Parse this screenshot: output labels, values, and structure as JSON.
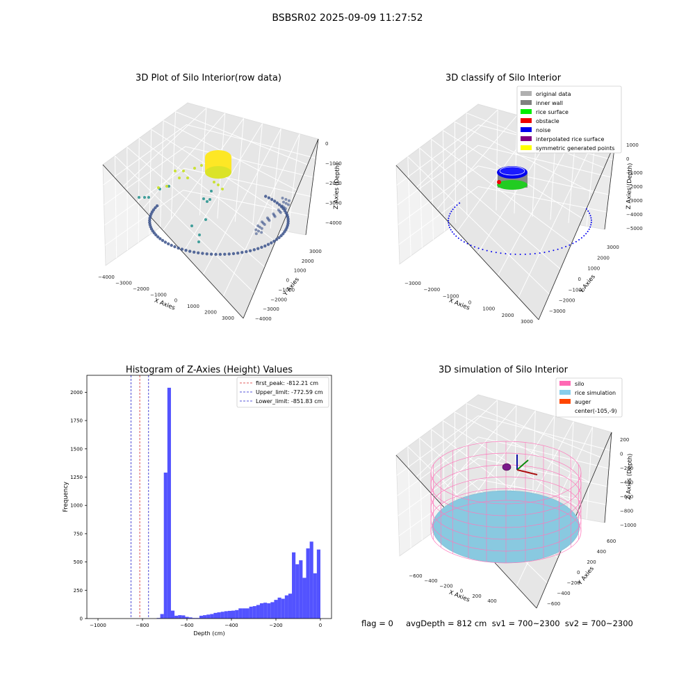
{
  "suptitle": "BSBSR02 2025-09-09 11:27:52",
  "status_line": "flag = 0     avgDepth = 812 cm  sv1 = 700~2300  sv2 = 700~2300",
  "colors": {
    "raw_low": "#3b528b",
    "raw_mid": "#21918c",
    "raw_high": "#c7e020",
    "raw_top": "#fde725",
    "hist_bar": "#4a4aff",
    "peak_line": "#d62728",
    "limit_line": "#1f1fcc",
    "silo_mesh": "#ff77bb",
    "rice_fill": "#89c9e0",
    "auger_blob": "#7b1a8a"
  },
  "chart_data": [
    {
      "type": "scatter",
      "panel": "3d-raw",
      "title": "3D Plot of Silo Interior(row data)",
      "xlabel": "X Axies",
      "ylabel": "Y Axies",
      "zlabel": "Z Axies (Depth)",
      "x_ticks": [
        "−4000",
        "−3000",
        "−2000",
        "−1000",
        "0",
        "1000",
        "2000",
        "3000"
      ],
      "y_ticks": [
        "−4000",
        "−3000",
        "−2000",
        "−1000",
        "0",
        "1000",
        "2000",
        "3000"
      ],
      "z_ticks": [
        "0",
        "−1000",
        "−2000",
        "−3000",
        "−4000"
      ],
      "colormap": "viridis"
    },
    {
      "type": "scatter",
      "panel": "3d-classify",
      "title": "3D classify of Silo Interior",
      "xlabel": "X Axies",
      "ylabel": "Y Axies",
      "zlabel": "Z Axies (Depth)",
      "x_ticks": [
        "−3000",
        "−2000",
        "−1000",
        "0",
        "1000",
        "2000",
        "3000"
      ],
      "y_ticks": [
        "−3000",
        "−2000",
        "−1000",
        "0",
        "1000",
        "2000",
        "3000"
      ],
      "z_ticks": [
        "1000",
        "0",
        "−1000",
        "−2000",
        "−3000",
        "−4000",
        "−5000"
      ],
      "legend_position": "top-right",
      "legend": [
        {
          "label": "original data",
          "color": "#b0b0b0"
        },
        {
          "label": "inner wall",
          "color": "#808080"
        },
        {
          "label": "rice surface",
          "color": "#00ee00"
        },
        {
          "label": "obstacle",
          "color": "#ee0000"
        },
        {
          "label": "noise",
          "color": "#0000ee"
        },
        {
          "label": "interpolated rice surface",
          "color": "#800080"
        },
        {
          "label": "symmetric generated points",
          "color": "#ffff00"
        }
      ]
    },
    {
      "type": "bar",
      "panel": "histogram",
      "title": "Histogram of Z-Axies (Height) Values",
      "xlabel": "Depth (cm)",
      "ylabel": "Frequency",
      "xlim": [
        -1050,
        50
      ],
      "ylim": [
        0,
        2150
      ],
      "x_ticks": [
        -1000,
        -800,
        -600,
        -400,
        -200,
        0
      ],
      "y_ticks": [
        0,
        250,
        500,
        750,
        1000,
        1250,
        1500,
        1750,
        2000
      ],
      "bins": [
        {
          "x0": -864,
          "x1": -848,
          "v": 5
        },
        {
          "x0": -848,
          "x1": -832,
          "v": 40
        },
        {
          "x0": -832,
          "x1": -816,
          "v": 1290
        },
        {
          "x0": -816,
          "x1": -800,
          "v": 2040
        },
        {
          "x0": -800,
          "x1": -784,
          "v": 70
        },
        {
          "x0": -784,
          "x1": -768,
          "v": 25
        },
        {
          "x0": -768,
          "x1": -752,
          "v": 30
        },
        {
          "x0": -752,
          "x1": -736,
          "v": 28
        },
        {
          "x0": -736,
          "x1": -720,
          "v": 15
        },
        {
          "x0": -720,
          "x1": -704,
          "v": 10
        },
        {
          "x0": -704,
          "x1": -688,
          "v": 5
        },
        {
          "x0": -688,
          "x1": -672,
          "v": 5
        },
        {
          "x0": -672,
          "x1": -656,
          "v": 25
        },
        {
          "x0": -656,
          "x1": -640,
          "v": 30
        },
        {
          "x0": -640,
          "x1": -624,
          "v": 35
        },
        {
          "x0": -624,
          "x1": -608,
          "v": 40
        },
        {
          "x0": -608,
          "x1": -592,
          "v": 50
        },
        {
          "x0": -592,
          "x1": -576,
          "v": 55
        },
        {
          "x0": -576,
          "x1": -560,
          "v": 60
        },
        {
          "x0": -560,
          "x1": -544,
          "v": 65
        },
        {
          "x0": -544,
          "x1": -528,
          "v": 68
        },
        {
          "x0": -528,
          "x1": -512,
          "v": 70
        },
        {
          "x0": -512,
          "x1": -496,
          "v": 75
        },
        {
          "x0": -496,
          "x1": -480,
          "v": 90
        },
        {
          "x0": -480,
          "x1": -464,
          "v": 90
        },
        {
          "x0": -464,
          "x1": -448,
          "v": 90
        },
        {
          "x0": -448,
          "x1": -432,
          "v": 105
        },
        {
          "x0": -432,
          "x1": -416,
          "v": 110
        },
        {
          "x0": -416,
          "x1": -400,
          "v": 120
        },
        {
          "x0": -400,
          "x1": -384,
          "v": 135
        },
        {
          "x0": -384,
          "x1": -368,
          "v": 140
        },
        {
          "x0": -368,
          "x1": -352,
          "v": 135
        },
        {
          "x0": -352,
          "x1": -336,
          "v": 145
        },
        {
          "x0": -336,
          "x1": -320,
          "v": 165
        },
        {
          "x0": -320,
          "x1": -304,
          "v": 185
        },
        {
          "x0": -304,
          "x1": -288,
          "v": 175
        },
        {
          "x0": -288,
          "x1": -272,
          "v": 205
        },
        {
          "x0": -272,
          "x1": -256,
          "v": 220
        },
        {
          "x0": -256,
          "x1": -240,
          "v": 585
        },
        {
          "x0": -240,
          "x1": -224,
          "v": 480
        },
        {
          "x0": -224,
          "x1": -208,
          "v": 515
        },
        {
          "x0": -208,
          "x1": -192,
          "v": 360
        },
        {
          "x0": -192,
          "x1": -176,
          "v": 620
        },
        {
          "x0": -176,
          "x1": -160,
          "v": 680
        },
        {
          "x0": -160,
          "x1": -144,
          "v": 400
        },
        {
          "x0": -144,
          "x1": -128,
          "v": 610
        }
      ],
      "bins_note_axis_map": {
        "last_bin_right": 0
      },
      "vlines": [
        {
          "x": -812.21,
          "label": "first_peak: -812.21 cm",
          "color": "#d62728"
        },
        {
          "x": -772.59,
          "label": "Upper_limit: -772.59 cm",
          "color": "#1f1fcc"
        },
        {
          "x": -851.83,
          "label": "Lower_limit: -851.83 cm",
          "color": "#1f1fcc"
        }
      ],
      "legend_position": "top-right"
    },
    {
      "type": "scatter",
      "panel": "3d-simulation",
      "title": "3D simulation of Silo Interior",
      "xlabel": "X Axies",
      "ylabel": "Y Axies",
      "zlabel": "Z Axies (Depth)",
      "x_ticks": [
        "−600",
        "−400",
        "−200",
        "0",
        "200",
        "400"
      ],
      "y_ticks": [
        "−600",
        "−400",
        "−200",
        "0",
        "200",
        "400",
        "600"
      ],
      "z_ticks": [
        "200",
        "0",
        "−200",
        "−400",
        "−600",
        "−800",
        "−1000"
      ],
      "legend_position": "top-right",
      "legend": [
        {
          "label": "silo",
          "color": "#ff69b4"
        },
        {
          "label": "rice simulation",
          "color": "#87ceeb"
        },
        {
          "label": "auger",
          "color": "#ff4500"
        },
        {
          "label": "center(-105,-9)",
          "color": "none"
        }
      ]
    }
  ]
}
